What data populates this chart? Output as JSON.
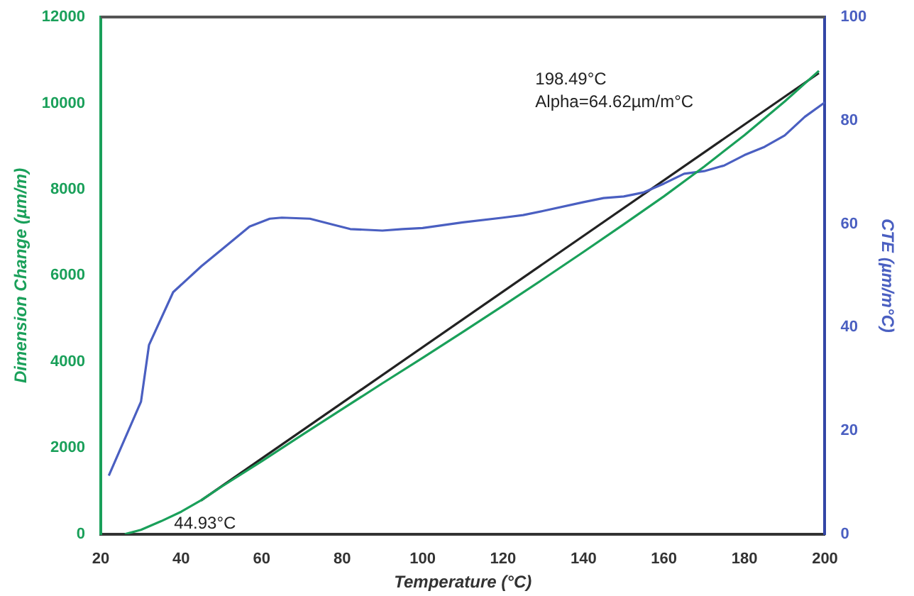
{
  "chart_data": {
    "type": "line",
    "xlabel": "Temperature (°C)",
    "ylabel": "Dimension Change (µm/m)",
    "y2label": "CTE (µm/m°C)",
    "xlim": [
      20,
      200
    ],
    "xticks": [
      20,
      40,
      60,
      80,
      100,
      120,
      140,
      160,
      180,
      200
    ],
    "ylim": [
      0,
      12000
    ],
    "yticks": [
      0,
      2000,
      4000,
      6000,
      8000,
      10000,
      12000
    ],
    "y2lim": [
      0,
      100
    ],
    "y2ticks": [
      0,
      20,
      40,
      60,
      80,
      100
    ],
    "grid": false,
    "legend": false,
    "marker": "none",
    "line_style": "solid",
    "series": [
      {
        "color": "#1aa05a",
        "x": [
          26,
          30,
          35,
          40,
          45,
          50,
          60,
          70,
          80,
          90,
          100,
          110,
          120,
          130,
          140,
          150,
          160,
          170,
          180,
          190,
          198.5
        ],
        "values": [
          0,
          100,
          300,
          520,
          790,
          1100,
          1690,
          2300,
          2900,
          3500,
          4090,
          4690,
          5300,
          5920,
          6550,
          7190,
          7840,
          8530,
          9260,
          10040,
          10750
        ]
      },
      {
        "color": "#4a5fc1",
        "axis": "y2",
        "x": [
          22,
          30,
          32,
          38,
          45,
          50,
          57,
          62,
          65,
          72,
          78,
          82,
          90,
          95,
          100,
          110,
          120,
          125,
          130,
          140,
          145,
          150,
          155,
          160,
          165,
          170,
          175,
          180,
          185,
          190,
          195,
          200
        ],
        "values": [
          11.3,
          25.6,
          36.6,
          46.8,
          51.8,
          55,
          59.5,
          61,
          61.2,
          61,
          59.8,
          59,
          58.7,
          59,
          59.2,
          60.3,
          61.2,
          61.7,
          62.5,
          64.2,
          65,
          65.3,
          66.1,
          67.8,
          69.7,
          70.2,
          71.3,
          73.3,
          74.9,
          77.1,
          80.7,
          83.5
        ]
      },
      {
        "color": "#222222",
        "x": [
          44.93,
          198.49
        ],
        "values": [
          780,
          10700
        ]
      }
    ],
    "annotations": [
      {
        "text": "44.93°C",
        "x": 44.93,
        "y": 780
      },
      "198.49°C",
      "Alpha=64.62µm/m°C"
    ]
  }
}
